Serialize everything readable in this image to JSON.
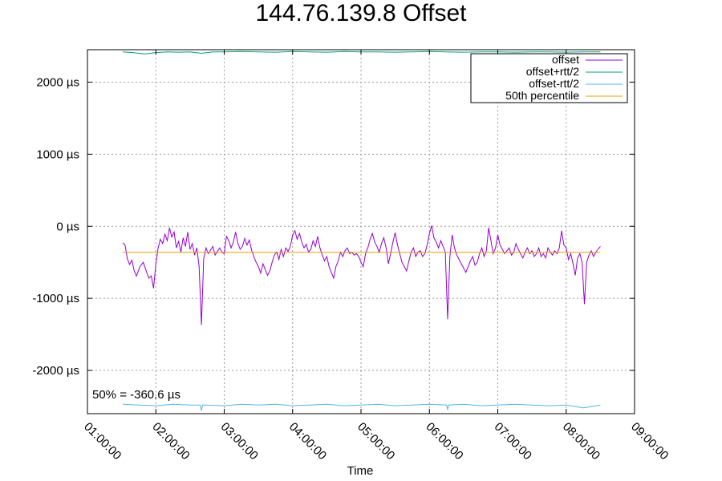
{
  "chart_data": {
    "type": "line",
    "title": "144.76.139.8 Offset",
    "xlabel": "Time",
    "ylabel": "",
    "x_ticks": [
      "01:00:00",
      "02:00:00",
      "03:00:00",
      "04:00:00",
      "05:00:00",
      "06:00:00",
      "07:00:00",
      "08:00:00",
      "09:00:00"
    ],
    "y_ticks": [
      {
        "value": -2000,
        "label": "-2000 µs"
      },
      {
        "value": -1000,
        "label": "-1000 µs"
      },
      {
        "value": 0,
        "label": "0 µs"
      },
      {
        "value": 1000,
        "label": "1000 µs"
      },
      {
        "value": 2000,
        "label": "2000 µs"
      }
    ],
    "xlim": [
      "01:00:00",
      "09:00:00"
    ],
    "ylim": [
      -2600,
      2450
    ],
    "grid": true,
    "legend_position": "top-right",
    "annotation": "50% = -360.6 µs",
    "series": [
      {
        "name": "offset",
        "color": "#9400d3",
        "points": [
          [
            "01:31:00",
            -230
          ],
          [
            "01:33:00",
            -260
          ],
          [
            "01:35:00",
            -450
          ],
          [
            "01:37:00",
            -530
          ],
          [
            "01:39:00",
            -470
          ],
          [
            "01:41:00",
            -620
          ],
          [
            "01:43:00",
            -690
          ],
          [
            "01:46:00",
            -560
          ],
          [
            "01:49:00",
            -500
          ],
          [
            "01:52:00",
            -640
          ],
          [
            "01:54:00",
            -720
          ],
          [
            "01:56:00",
            -690
          ],
          [
            "01:58:00",
            -860
          ],
          [
            "02:00:00",
            -520
          ],
          [
            "02:02:00",
            -300
          ],
          [
            "02:04:00",
            -180
          ],
          [
            "02:06:00",
            -240
          ],
          [
            "02:08:00",
            -110
          ],
          [
            "02:10:00",
            -200
          ],
          [
            "02:12:00",
            -20
          ],
          [
            "02:14:00",
            -150
          ],
          [
            "02:16:00",
            -80
          ],
          [
            "02:18:00",
            -300
          ],
          [
            "02:20:00",
            -210
          ],
          [
            "02:22:00",
            -360
          ],
          [
            "02:24:00",
            -160
          ],
          [
            "02:26:00",
            -280
          ],
          [
            "02:28:00",
            -80
          ],
          [
            "02:30:00",
            -320
          ],
          [
            "02:32:00",
            -240
          ],
          [
            "02:34:00",
            -400
          ],
          [
            "02:36:00",
            -300
          ],
          [
            "02:38:00",
            -560
          ],
          [
            "02:40:00",
            -1370
          ],
          [
            "02:42:00",
            -450
          ],
          [
            "02:44:00",
            -300
          ],
          [
            "02:46:00",
            -380
          ],
          [
            "02:48:00",
            -330
          ],
          [
            "02:50:00",
            -280
          ],
          [
            "02:52:00",
            -400
          ],
          [
            "02:54:00",
            -350
          ],
          [
            "02:56:00",
            -300
          ],
          [
            "02:58:00",
            -360
          ],
          [
            "03:00:00",
            -380
          ],
          [
            "03:02:00",
            -140
          ],
          [
            "03:04:00",
            -200
          ],
          [
            "03:06:00",
            -300
          ],
          [
            "03:08:00",
            -220
          ],
          [
            "03:10:00",
            -80
          ],
          [
            "03:12:00",
            -240
          ],
          [
            "03:14:00",
            -320
          ],
          [
            "03:16:00",
            -280
          ],
          [
            "03:18:00",
            -170
          ],
          [
            "03:20:00",
            -260
          ],
          [
            "03:22:00",
            -190
          ],
          [
            "03:24:00",
            -330
          ],
          [
            "03:26:00",
            -420
          ],
          [
            "03:28:00",
            -500
          ],
          [
            "03:30:00",
            -560
          ],
          [
            "03:32:00",
            -650
          ],
          [
            "03:34:00",
            -520
          ],
          [
            "03:36:00",
            -600
          ],
          [
            "03:38:00",
            -680
          ],
          [
            "03:40:00",
            -620
          ],
          [
            "03:42:00",
            -500
          ],
          [
            "03:44:00",
            -400
          ],
          [
            "03:46:00",
            -360
          ],
          [
            "03:48:00",
            -460
          ],
          [
            "03:50:00",
            -320
          ],
          [
            "03:52:00",
            -420
          ],
          [
            "03:54:00",
            -300
          ],
          [
            "03:56:00",
            -350
          ],
          [
            "03:58:00",
            -280
          ],
          [
            "04:00:00",
            -120
          ],
          [
            "04:02:00",
            -60
          ],
          [
            "04:04:00",
            -180
          ],
          [
            "04:06:00",
            -100
          ],
          [
            "04:08:00",
            -220
          ],
          [
            "04:10:00",
            -300
          ],
          [
            "04:12:00",
            -250
          ],
          [
            "04:14:00",
            -360
          ],
          [
            "04:16:00",
            -320
          ],
          [
            "04:18:00",
            -200
          ],
          [
            "04:20:00",
            -280
          ],
          [
            "04:22:00",
            -140
          ],
          [
            "04:24:00",
            -300
          ],
          [
            "04:26:00",
            -400
          ],
          [
            "04:28:00",
            -480
          ],
          [
            "04:30:00",
            -420
          ],
          [
            "04:32:00",
            -560
          ],
          [
            "04:34:00",
            -640
          ],
          [
            "04:36:00",
            -720
          ],
          [
            "04:38:00",
            -560
          ],
          [
            "04:40:00",
            -480
          ],
          [
            "04:42:00",
            -360
          ],
          [
            "04:44:00",
            -420
          ],
          [
            "04:46:00",
            -340
          ],
          [
            "04:48:00",
            -300
          ],
          [
            "04:50:00",
            -380
          ],
          [
            "04:52:00",
            -360
          ],
          [
            "04:54:00",
            -400
          ],
          [
            "04:56:00",
            -380
          ],
          [
            "04:58:00",
            -420
          ],
          [
            "05:00:00",
            -500
          ],
          [
            "05:02:00",
            -560
          ],
          [
            "05:04:00",
            -380
          ],
          [
            "05:06:00",
            -300
          ],
          [
            "05:08:00",
            -180
          ],
          [
            "05:10:00",
            -100
          ],
          [
            "05:12:00",
            -220
          ],
          [
            "05:14:00",
            -280
          ],
          [
            "05:16:00",
            -360
          ],
          [
            "05:18:00",
            -240
          ],
          [
            "05:20:00",
            -160
          ],
          [
            "05:22:00",
            -300
          ],
          [
            "05:24:00",
            -520
          ],
          [
            "05:26:00",
            -380
          ],
          [
            "05:28:00",
            -220
          ],
          [
            "05:30:00",
            -90
          ],
          [
            "05:32:00",
            -260
          ],
          [
            "05:34:00",
            -380
          ],
          [
            "05:36:00",
            -500
          ],
          [
            "05:38:00",
            -560
          ],
          [
            "05:40:00",
            -620
          ],
          [
            "05:42:00",
            -480
          ],
          [
            "05:44:00",
            -360
          ],
          [
            "05:46:00",
            -300
          ],
          [
            "05:48:00",
            -420
          ],
          [
            "05:50:00",
            -360
          ],
          [
            "05:52:00",
            -340
          ],
          [
            "05:54:00",
            -420
          ],
          [
            "05:56:00",
            -380
          ],
          [
            "05:58:00",
            -260
          ],
          [
            "06:00:00",
            -100
          ],
          [
            "06:02:00",
            10
          ],
          [
            "06:04:00",
            -160
          ],
          [
            "06:06:00",
            -220
          ],
          [
            "06:08:00",
            -300
          ],
          [
            "06:10:00",
            -200
          ],
          [
            "06:12:00",
            -280
          ],
          [
            "06:14:00",
            -360
          ],
          [
            "06:16:00",
            -1290
          ],
          [
            "06:18:00",
            -420
          ],
          [
            "06:20:00",
            -120
          ],
          [
            "06:22:00",
            -300
          ],
          [
            "06:24:00",
            -400
          ],
          [
            "06:26:00",
            -460
          ],
          [
            "06:28:00",
            -520
          ],
          [
            "06:30:00",
            -580
          ],
          [
            "06:32:00",
            -640
          ],
          [
            "06:34:00",
            -560
          ],
          [
            "06:36:00",
            -480
          ],
          [
            "06:38:00",
            -420
          ],
          [
            "06:40:00",
            -540
          ],
          [
            "06:42:00",
            -500
          ],
          [
            "06:44:00",
            -380
          ],
          [
            "06:46:00",
            -300
          ],
          [
            "06:48:00",
            -420
          ],
          [
            "06:50:00",
            -340
          ],
          [
            "06:52:00",
            -20
          ],
          [
            "06:54:00",
            -200
          ],
          [
            "06:56:00",
            -380
          ],
          [
            "06:58:00",
            -300
          ],
          [
            "07:00:00",
            -120
          ],
          [
            "07:02:00",
            -260
          ],
          [
            "07:04:00",
            -320
          ],
          [
            "07:06:00",
            -380
          ],
          [
            "07:08:00",
            -340
          ],
          [
            "07:10:00",
            -300
          ],
          [
            "07:12:00",
            -400
          ],
          [
            "07:14:00",
            -360
          ],
          [
            "07:16:00",
            -240
          ],
          [
            "07:18:00",
            -320
          ],
          [
            "07:20:00",
            -380
          ],
          [
            "07:22:00",
            -440
          ],
          [
            "07:24:00",
            -360
          ],
          [
            "07:26:00",
            -300
          ],
          [
            "07:28:00",
            -380
          ],
          [
            "07:30:00",
            -340
          ],
          [
            "07:32:00",
            -420
          ],
          [
            "07:34:00",
            -380
          ],
          [
            "07:36:00",
            -300
          ],
          [
            "07:38:00",
            -420
          ],
          [
            "07:40:00",
            -380
          ],
          [
            "07:42:00",
            -440
          ],
          [
            "07:44:00",
            -300
          ],
          [
            "07:46:00",
            -360
          ],
          [
            "07:48:00",
            -400
          ],
          [
            "07:50:00",
            -340
          ],
          [
            "07:52:00",
            -380
          ],
          [
            "07:54:00",
            -300
          ],
          [
            "07:56:00",
            -60
          ],
          [
            "07:58:00",
            -260
          ],
          [
            "08:00:00",
            -300
          ],
          [
            "08:02:00",
            -460
          ],
          [
            "08:04:00",
            -380
          ],
          [
            "08:06:00",
            -520
          ],
          [
            "08:08:00",
            -680
          ],
          [
            "08:10:00",
            -440
          ],
          [
            "08:12:00",
            -380
          ],
          [
            "08:14:00",
            -500
          ],
          [
            "08:16:00",
            -1080
          ],
          [
            "08:18:00",
            -500
          ],
          [
            "08:20:00",
            -400
          ],
          [
            "08:22:00",
            -340
          ],
          [
            "08:24:00",
            -420
          ],
          [
            "08:26:00",
            -360
          ],
          [
            "08:28:00",
            -320
          ],
          [
            "08:30:00",
            -280
          ]
        ]
      },
      {
        "name": "offset+rtt/2",
        "color": "#009e73",
        "points": [
          [
            "01:31:00",
            2420
          ],
          [
            "01:40:00",
            2410
          ],
          [
            "01:50:00",
            2390
          ],
          [
            "02:00:00",
            2410
          ],
          [
            "02:10:00",
            2420
          ],
          [
            "02:20:00",
            2415
          ],
          [
            "02:30:00",
            2420
          ],
          [
            "02:40:00",
            2400
          ],
          [
            "02:50:00",
            2420
          ],
          [
            "03:00:00",
            2420
          ],
          [
            "03:15:00",
            2425
          ],
          [
            "03:30:00",
            2420
          ],
          [
            "03:45:00",
            2415
          ],
          [
            "04:00:00",
            2425
          ],
          [
            "04:15:00",
            2420
          ],
          [
            "04:30:00",
            2415
          ],
          [
            "04:45:00",
            2425
          ],
          [
            "05:00:00",
            2420
          ],
          [
            "05:15:00",
            2420
          ],
          [
            "05:30:00",
            2415
          ],
          [
            "05:45:00",
            2420
          ],
          [
            "06:00:00",
            2425
          ],
          [
            "06:15:00",
            2420
          ],
          [
            "06:30:00",
            2415
          ],
          [
            "06:45:00",
            2420
          ],
          [
            "07:00:00",
            2420
          ],
          [
            "07:15:00",
            2415
          ],
          [
            "07:30:00",
            2420
          ],
          [
            "07:45:00",
            2420
          ],
          [
            "08:00:00",
            2415
          ],
          [
            "08:15:00",
            2420
          ],
          [
            "08:30:00",
            2420
          ]
        ]
      },
      {
        "name": "offset-rtt/2",
        "color": "#56b4e9",
        "points": [
          [
            "01:31:00",
            -2470
          ],
          [
            "01:45:00",
            -2480
          ],
          [
            "02:00:00",
            -2490
          ],
          [
            "02:15:00",
            -2470
          ],
          [
            "02:30:00",
            -2480
          ],
          [
            "02:39:00",
            -2480
          ],
          [
            "02:40:00",
            -2560
          ],
          [
            "02:41:00",
            -2480
          ],
          [
            "03:00:00",
            -2490
          ],
          [
            "03:15:00",
            -2470
          ],
          [
            "03:30:00",
            -2480
          ],
          [
            "03:45:00",
            -2470
          ],
          [
            "04:00:00",
            -2490
          ],
          [
            "04:15:00",
            -2480
          ],
          [
            "04:30:00",
            -2470
          ],
          [
            "04:45:00",
            -2490
          ],
          [
            "05:00:00",
            -2480
          ],
          [
            "05:15:00",
            -2470
          ],
          [
            "05:30:00",
            -2490
          ],
          [
            "05:45:00",
            -2480
          ],
          [
            "06:00:00",
            -2470
          ],
          [
            "06:15:00",
            -2480
          ],
          [
            "06:16:00",
            -2540
          ],
          [
            "06:17:00",
            -2480
          ],
          [
            "06:30:00",
            -2470
          ],
          [
            "06:45:00",
            -2490
          ],
          [
            "07:00:00",
            -2480
          ],
          [
            "07:15:00",
            -2470
          ],
          [
            "07:30:00",
            -2480
          ],
          [
            "07:45:00",
            -2490
          ],
          [
            "08:00:00",
            -2480
          ],
          [
            "08:15:00",
            -2520
          ],
          [
            "08:30:00",
            -2480
          ]
        ]
      },
      {
        "name": "50th percentile",
        "color": "#e6a000",
        "points": [
          [
            "01:31:00",
            -360.6
          ],
          [
            "08:30:00",
            -360.6
          ]
        ]
      }
    ]
  }
}
